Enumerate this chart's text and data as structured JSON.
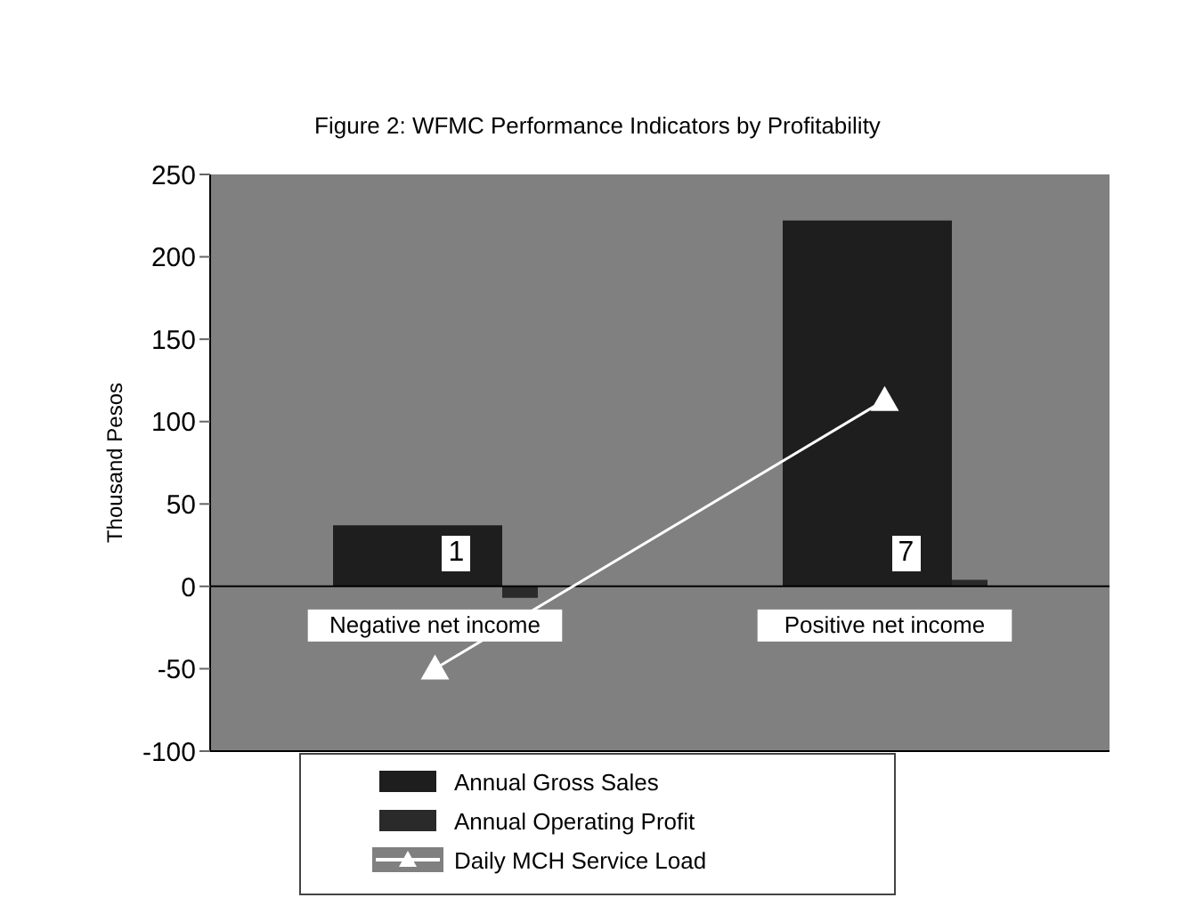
{
  "chart_data": {
    "type": "bar",
    "title": "Figure 2: WFMC Performance Indicators by Profitability",
    "ylabel": "Thousand Pesos",
    "categories": [
      "Negative net income",
      "Positive net income"
    ],
    "series": [
      {
        "name": "Annual Gross Sales",
        "color": "#1e1e1e",
        "values": [
          37,
          222
        ]
      },
      {
        "name": "Annual Operating Profit",
        "color": "#2a2a2a",
        "values": [
          -7,
          4
        ]
      },
      {
        "name": "Daily MCH Service Load",
        "type": "line",
        "color": "#ffffff",
        "marker": "triangle",
        "values": [
          -50,
          113
        ]
      }
    ],
    "annotations": [
      "1",
      "7"
    ],
    "ylim": [
      -100,
      250
    ],
    "yticks": [
      -100,
      -50,
      0,
      50,
      100,
      150,
      200,
      250
    ],
    "legend": "bottom"
  }
}
